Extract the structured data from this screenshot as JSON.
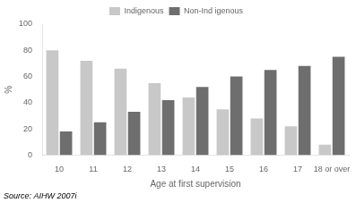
{
  "chart_data": {
    "type": "bar",
    "categories": [
      "10",
      "11",
      "12",
      "13",
      "14",
      "15",
      "16",
      "17",
      "18 or over"
    ],
    "series": [
      {
        "name": "Indigenous",
        "color": "#c8c8c8",
        "values": [
          80,
          72,
          66,
          55,
          44,
          35,
          28,
          22,
          8
        ]
      },
      {
        "name": "Non-Ind igenous",
        "color": "#6e6e6e",
        "values": [
          18,
          25,
          33,
          42,
          52,
          60,
          65,
          68,
          75
        ]
      }
    ],
    "xlabel": "Age at first supervision",
    "ylabel": "%",
    "annotations": [
      "Source: AIHW 2007i"
    ],
    "ylim": [
      0,
      100
    ],
    "yticks": [
      0,
      20,
      40,
      60,
      80,
      100
    ],
    "grid": false,
    "legend": "top"
  }
}
